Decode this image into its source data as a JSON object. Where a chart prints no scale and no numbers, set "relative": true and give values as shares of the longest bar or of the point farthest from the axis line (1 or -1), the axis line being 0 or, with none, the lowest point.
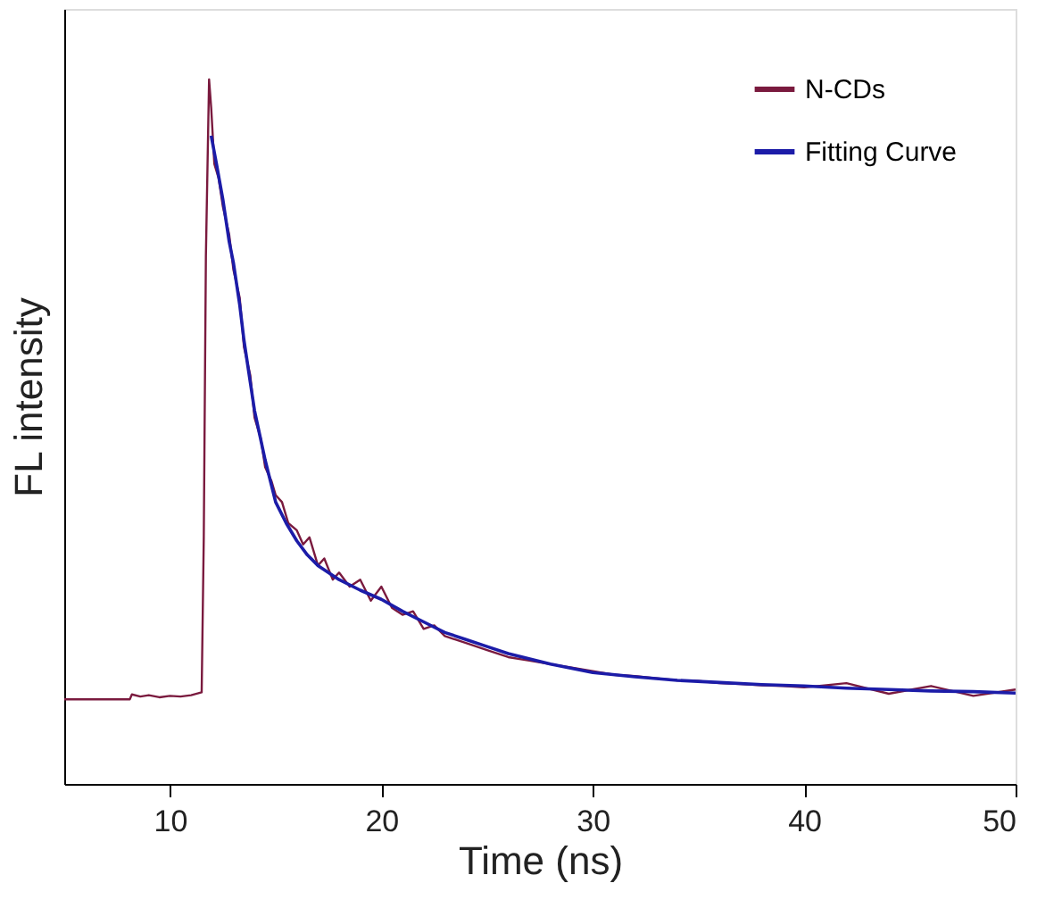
{
  "chart_data": {
    "type": "line",
    "relative": true,
    "xlabel": "Time (ns)",
    "ylabel": "FL intensity",
    "xlim": [
      5,
      50
    ],
    "xticks": [
      10,
      20,
      30,
      40,
      50
    ],
    "tick_labels": "x",
    "legend": "top right",
    "grid": false,
    "line_style": "solid",
    "marker": "none",
    "series": [
      {
        "name": "N-CDs",
        "color": "#7a1a3e",
        "x": [
          5,
          8.1,
          8.2,
          8.6,
          9.0,
          9.5,
          10.0,
          10.5,
          11.0,
          11.5,
          11.6,
          11.7,
          11.85,
          11.95,
          12.1,
          12.3,
          12.5,
          12.8,
          13.0,
          13.3,
          13.5,
          13.8,
          14.0,
          14.3,
          14.5,
          14.8,
          15.0,
          15.3,
          15.6,
          16.0,
          16.3,
          16.6,
          17.0,
          17.3,
          17.7,
          18.0,
          18.5,
          19.0,
          19.5,
          20.0,
          20.5,
          21.0,
          21.5,
          22.0,
          22.5,
          23.0,
          24.0,
          25.0,
          26.0,
          27.0,
          28.0,
          29.0,
          30.0,
          31.0,
          32.0,
          33.0,
          34.0,
          35.0,
          36.0,
          37.0,
          38.0,
          39.0,
          40.0,
          42.0,
          44.0,
          46.0,
          48.0,
          50.0
        ],
        "values": [
          0.12,
          0.12,
          0.127,
          0.124,
          0.126,
          0.123,
          0.125,
          0.124,
          0.126,
          0.13,
          0.35,
          0.75,
          1.0,
          0.96,
          0.88,
          0.86,
          0.82,
          0.78,
          0.73,
          0.69,
          0.62,
          0.58,
          0.52,
          0.49,
          0.45,
          0.43,
          0.41,
          0.4,
          0.37,
          0.36,
          0.34,
          0.35,
          0.31,
          0.32,
          0.29,
          0.3,
          0.28,
          0.29,
          0.26,
          0.28,
          0.25,
          0.24,
          0.245,
          0.22,
          0.225,
          0.21,
          0.2,
          0.19,
          0.18,
          0.175,
          0.17,
          0.165,
          0.16,
          0.155,
          0.153,
          0.15,
          0.147,
          0.146,
          0.143,
          0.142,
          0.14,
          0.139,
          0.137,
          0.143,
          0.128,
          0.139,
          0.125,
          0.134
        ]
      },
      {
        "name": "Fitting Curve",
        "color": "#1c1ca8",
        "x": [
          11.95,
          12.2,
          12.5,
          12.8,
          13.0,
          13.3,
          13.5,
          13.8,
          14.0,
          14.5,
          15.0,
          15.5,
          16.0,
          16.5,
          17.0,
          18.0,
          19.0,
          20.0,
          21.0,
          22.0,
          23.0,
          24.0,
          25.0,
          26.0,
          28.0,
          30.0,
          32.0,
          34.0,
          36.0,
          38.0,
          40.0,
          42.0,
          44.0,
          46.0,
          48.0,
          50.0
        ],
        "values": [
          0.92,
          0.88,
          0.83,
          0.77,
          0.74,
          0.68,
          0.63,
          0.57,
          0.53,
          0.46,
          0.4,
          0.37,
          0.345,
          0.325,
          0.31,
          0.29,
          0.275,
          0.262,
          0.245,
          0.23,
          0.215,
          0.205,
          0.195,
          0.185,
          0.17,
          0.158,
          0.152,
          0.147,
          0.144,
          0.141,
          0.139,
          0.136,
          0.134,
          0.132,
          0.131,
          0.129
        ]
      }
    ]
  }
}
